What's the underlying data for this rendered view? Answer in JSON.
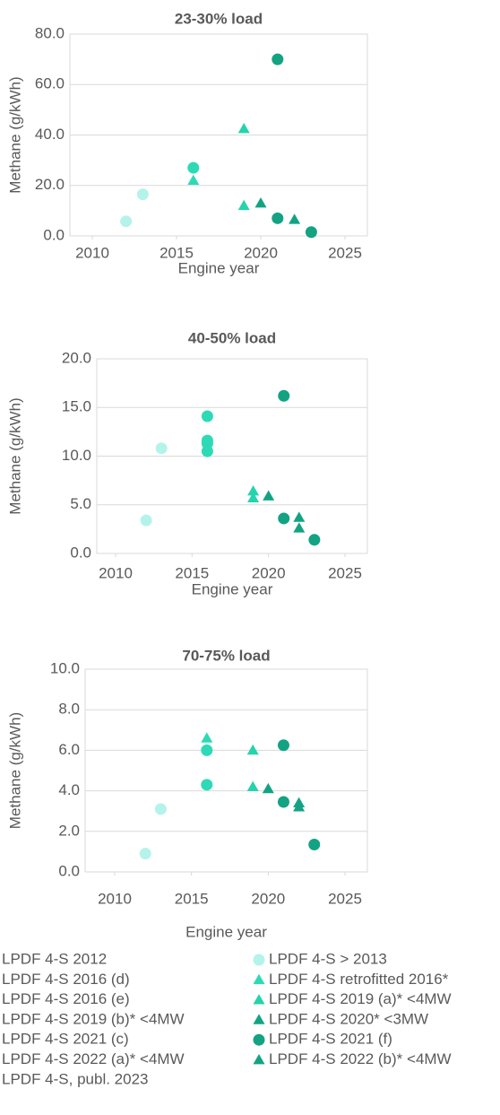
{
  "chart_data": [
    {
      "type": "scatter",
      "title": "23-30% load",
      "x_label": "Engine year",
      "y_label": "Methane (g/kWh)",
      "xlim": [
        2010,
        2025
      ],
      "xticks": [
        2010,
        2015,
        2020,
        2025
      ],
      "ylim": [
        0,
        80
      ],
      "yticks": [
        {
          "value": 0,
          "label": "0.0"
        },
        {
          "value": 20,
          "label": "20.0"
        },
        {
          "value": 40,
          "label": "40.0"
        },
        {
          "value": 60,
          "label": "60.0"
        },
        {
          "value": 80,
          "label": "80.0"
        }
      ],
      "grid": true,
      "series": [
        {
          "x": [
            2012
          ],
          "values": [
            5.8
          ]
        },
        {
          "x": [
            2013
          ],
          "values": [
            16.5
          ]
        },
        {
          "x": [
            2016
          ],
          "values": [
            27
          ]
        },
        {
          "x": [
            2016
          ],
          "values": [
            22
          ]
        },
        {
          "x": [],
          "values": []
        },
        {
          "x": [
            2019
          ],
          "values": [
            42.5
          ]
        },
        {
          "x": [
            2019
          ],
          "values": [
            12
          ]
        },
        {
          "x": [
            2020
          ],
          "values": [
            13
          ]
        },
        {
          "x": [
            2021
          ],
          "values": [
            70
          ]
        },
        {
          "x": [
            2021
          ],
          "values": [
            7
          ]
        },
        {
          "x": [
            2022
          ],
          "values": [
            6.5
          ]
        },
        {
          "x": [],
          "values": []
        },
        {
          "x": [
            2023
          ],
          "values": [
            1.5
          ]
        }
      ]
    },
    {
      "type": "scatter",
      "title": "40-50% load",
      "x_label": "Engine year",
      "y_label": "Methane (g/kWh)",
      "xlim": [
        2010,
        2025
      ],
      "xticks": [
        2010,
        2015,
        2020,
        2025
      ],
      "ylim": [
        0,
        20
      ],
      "yticks": [
        {
          "value": 0,
          "label": "0.0"
        },
        {
          "value": 5,
          "label": "5.0"
        },
        {
          "value": 10,
          "label": "10.0"
        },
        {
          "value": 15,
          "label": "15.0"
        },
        {
          "value": 20,
          "label": "20.0"
        }
      ],
      "grid": true,
      "series": [
        {
          "x": [
            2012
          ],
          "values": [
            3.4
          ]
        },
        {
          "x": [
            2013
          ],
          "values": [
            10.8
          ]
        },
        {
          "x": [
            2016,
            2016
          ],
          "values": [
            14.1,
            11.6
          ]
        },
        {
          "x": [],
          "values": []
        },
        {
          "x": [
            2016,
            2016
          ],
          "values": [
            11.3,
            10.5
          ]
        },
        {
          "x": [
            2019
          ],
          "values": [
            6.4
          ]
        },
        {
          "x": [
            2019
          ],
          "values": [
            5.7
          ]
        },
        {
          "x": [
            2020
          ],
          "values": [
            5.9
          ]
        },
        {
          "x": [
            2021
          ],
          "values": [
            16.2
          ]
        },
        {
          "x": [
            2021
          ],
          "values": [
            3.6
          ]
        },
        {
          "x": [
            2022
          ],
          "values": [
            3.7
          ]
        },
        {
          "x": [
            2022
          ],
          "values": [
            2.6
          ]
        },
        {
          "x": [
            2023
          ],
          "values": [
            1.4
          ]
        }
      ]
    },
    {
      "type": "scatter",
      "title": "70-75% load",
      "x_label": "Engine year",
      "y_label": "Methane (g/kWh)",
      "xlim": [
        2010,
        2025
      ],
      "xticks": [
        2010,
        2015,
        2020,
        2025
      ],
      "ylim": [
        0,
        10
      ],
      "yticks": [
        {
          "value": 0,
          "label": "0.0"
        },
        {
          "value": 2,
          "label": "2.0"
        },
        {
          "value": 4,
          "label": "4.0"
        },
        {
          "value": 6,
          "label": "6.0"
        },
        {
          "value": 8,
          "label": "8.0"
        },
        {
          "value": 10,
          "label": "10.0"
        }
      ],
      "grid": true,
      "series": [
        {
          "x": [
            2012
          ],
          "values": [
            0.9
          ]
        },
        {
          "x": [
            2013
          ],
          "values": [
            3.1
          ]
        },
        {
          "x": [
            2016
          ],
          "values": [
            6.0
          ]
        },
        {
          "x": [
            2016
          ],
          "values": [
            6.6
          ]
        },
        {
          "x": [
            2016
          ],
          "values": [
            4.3
          ]
        },
        {
          "x": [
            2019
          ],
          "values": [
            6.0
          ]
        },
        {
          "x": [
            2019
          ],
          "values": [
            4.2
          ]
        },
        {
          "x": [
            2020
          ],
          "values": [
            4.1
          ]
        },
        {
          "x": [
            2021
          ],
          "values": [
            6.25
          ]
        },
        {
          "x": [
            2021
          ],
          "values": [
            3.45
          ]
        },
        {
          "x": [
            2022
          ],
          "values": [
            3.4
          ]
        },
        {
          "x": [
            2022
          ],
          "values": [
            3.2
          ]
        },
        {
          "x": [
            2023
          ],
          "values": [
            1.35
          ]
        }
      ]
    }
  ],
  "legend": {
    "series": [
      {
        "name": "LPDF 4-S 2012",
        "color": "#b4f3ea",
        "marker": "circle"
      },
      {
        "name": "LPDF 4-S > 2013",
        "color": "#b4f3ea",
        "marker": "circle"
      },
      {
        "name": "LPDF 4-S 2016 (d)",
        "color": "#2edab6",
        "marker": "circle"
      },
      {
        "name": "LPDF 4-S retrofitted 2016*",
        "color": "#2edab6",
        "marker": "triangle"
      },
      {
        "name": "LPDF 4-S 2016 (e)",
        "color": "#2edab6",
        "marker": "circle"
      },
      {
        "name": "LPDF 4-S 2019 (a)* <4MW",
        "color": "#25d3ad",
        "marker": "triangle"
      },
      {
        "name": "LPDF 4-S 2019 (b)* <4MW",
        "color": "#25d3ad",
        "marker": "triangle"
      },
      {
        "name": "LPDF 4-S 2020* <3MW",
        "color": "#13a383",
        "marker": "triangle"
      },
      {
        "name": "LPDF 4-S 2021 (c)",
        "color": "#13a383",
        "marker": "circle"
      },
      {
        "name": "LPDF 4-S 2021 (f)",
        "color": "#13a383",
        "marker": "circle"
      },
      {
        "name": "LPDF 4-S 2022 (a)* <4MW",
        "color": "#13a383",
        "marker": "triangle"
      },
      {
        "name": "LPDF 4-S 2022 (b)* <4MW",
        "color": "#13a383",
        "marker": "triangle"
      },
      {
        "name": "LPDF 4-S, publ. 2023",
        "color": "#13a383",
        "marker": "circle"
      }
    ]
  }
}
